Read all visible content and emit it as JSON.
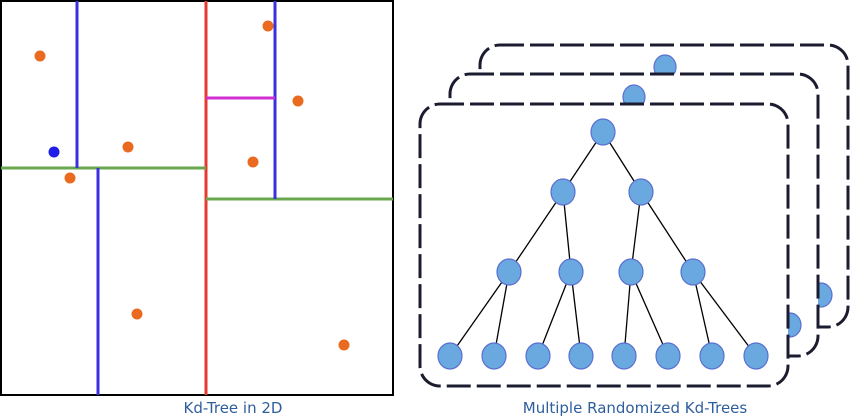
{
  "left_panel": {
    "caption": "Kd-Tree in 2D",
    "colors": {
      "frame": "#000000",
      "split_red": "#e53b2f",
      "split_green": "#6aa84f",
      "split_blue": "#3b2fe0",
      "split_magenta": "#d22fd2",
      "point": "#ea6a1f",
      "query_point": "#1e1ee6"
    },
    "points_count": 9
  },
  "right_panel": {
    "caption": "Multiple Randomized Kd-Trees",
    "colors": {
      "card_border": "#1c1c30",
      "node_fill": "#6aa9e0",
      "node_stroke": "#5a6fd0",
      "edge": "#000000"
    },
    "tree_depth_levels": 4,
    "stack_count": 3
  },
  "caption_color": "#2e5e9c"
}
